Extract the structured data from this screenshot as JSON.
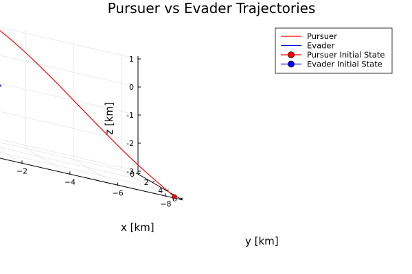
{
  "chart_data": {
    "type": "line",
    "title": "Pursuer vs Evader Trajectories",
    "xlabel": "x [km]",
    "ylabel": "y [km]",
    "zlabel": "z [km]",
    "x_ticks": [
      0,
      2,
      4,
      6
    ],
    "y_ticks": [
      -8,
      -6,
      -4,
      -2,
      0
    ],
    "z_ticks": [
      1,
      0,
      -1,
      -2,
      -3
    ],
    "xlim": [
      -0.5,
      6.3
    ],
    "ylim": [
      -8.7,
      1.3
    ],
    "zlim": [
      -3.1,
      1.5
    ],
    "grid": true,
    "legend_position": "top-right",
    "series": [
      {
        "name": "Pursuer",
        "color": "#ff0000",
        "points": [
          [
            6.0,
            -8.45,
            -3.08
          ],
          [
            4.5,
            -7.2,
            -2.3
          ],
          [
            3.0,
            -5.8,
            -1.2
          ],
          [
            1.6,
            -4.3,
            0.0
          ],
          [
            0.6,
            -3.0,
            0.85
          ],
          [
            0.1,
            -2.2,
            1.18
          ],
          [
            0.0,
            -2.1,
            1.15
          ]
        ]
      },
      {
        "name": "Evader",
        "color": "#0000ff",
        "points": [
          [
            0.0,
            -2.0,
            1.45
          ],
          [
            0.15,
            -2.25,
            0.6
          ],
          [
            0.35,
            -2.5,
            -0.4
          ],
          [
            0.55,
            -2.75,
            -1.0
          ],
          [
            0.65,
            -2.85,
            -1.05
          ],
          [
            0.4,
            -2.3,
            -0.95
          ],
          [
            0.25,
            -1.85,
            -0.75
          ]
        ]
      }
    ],
    "initial_states": [
      {
        "name": "Pursuer Initial State",
        "color": "#ff0000",
        "point": [
          6.0,
          -8.45,
          -3.08
        ]
      },
      {
        "name": "Evader Initial State",
        "color": "#0000ff",
        "point": [
          0.2,
          -2.45,
          0.2
        ]
      }
    ]
  }
}
